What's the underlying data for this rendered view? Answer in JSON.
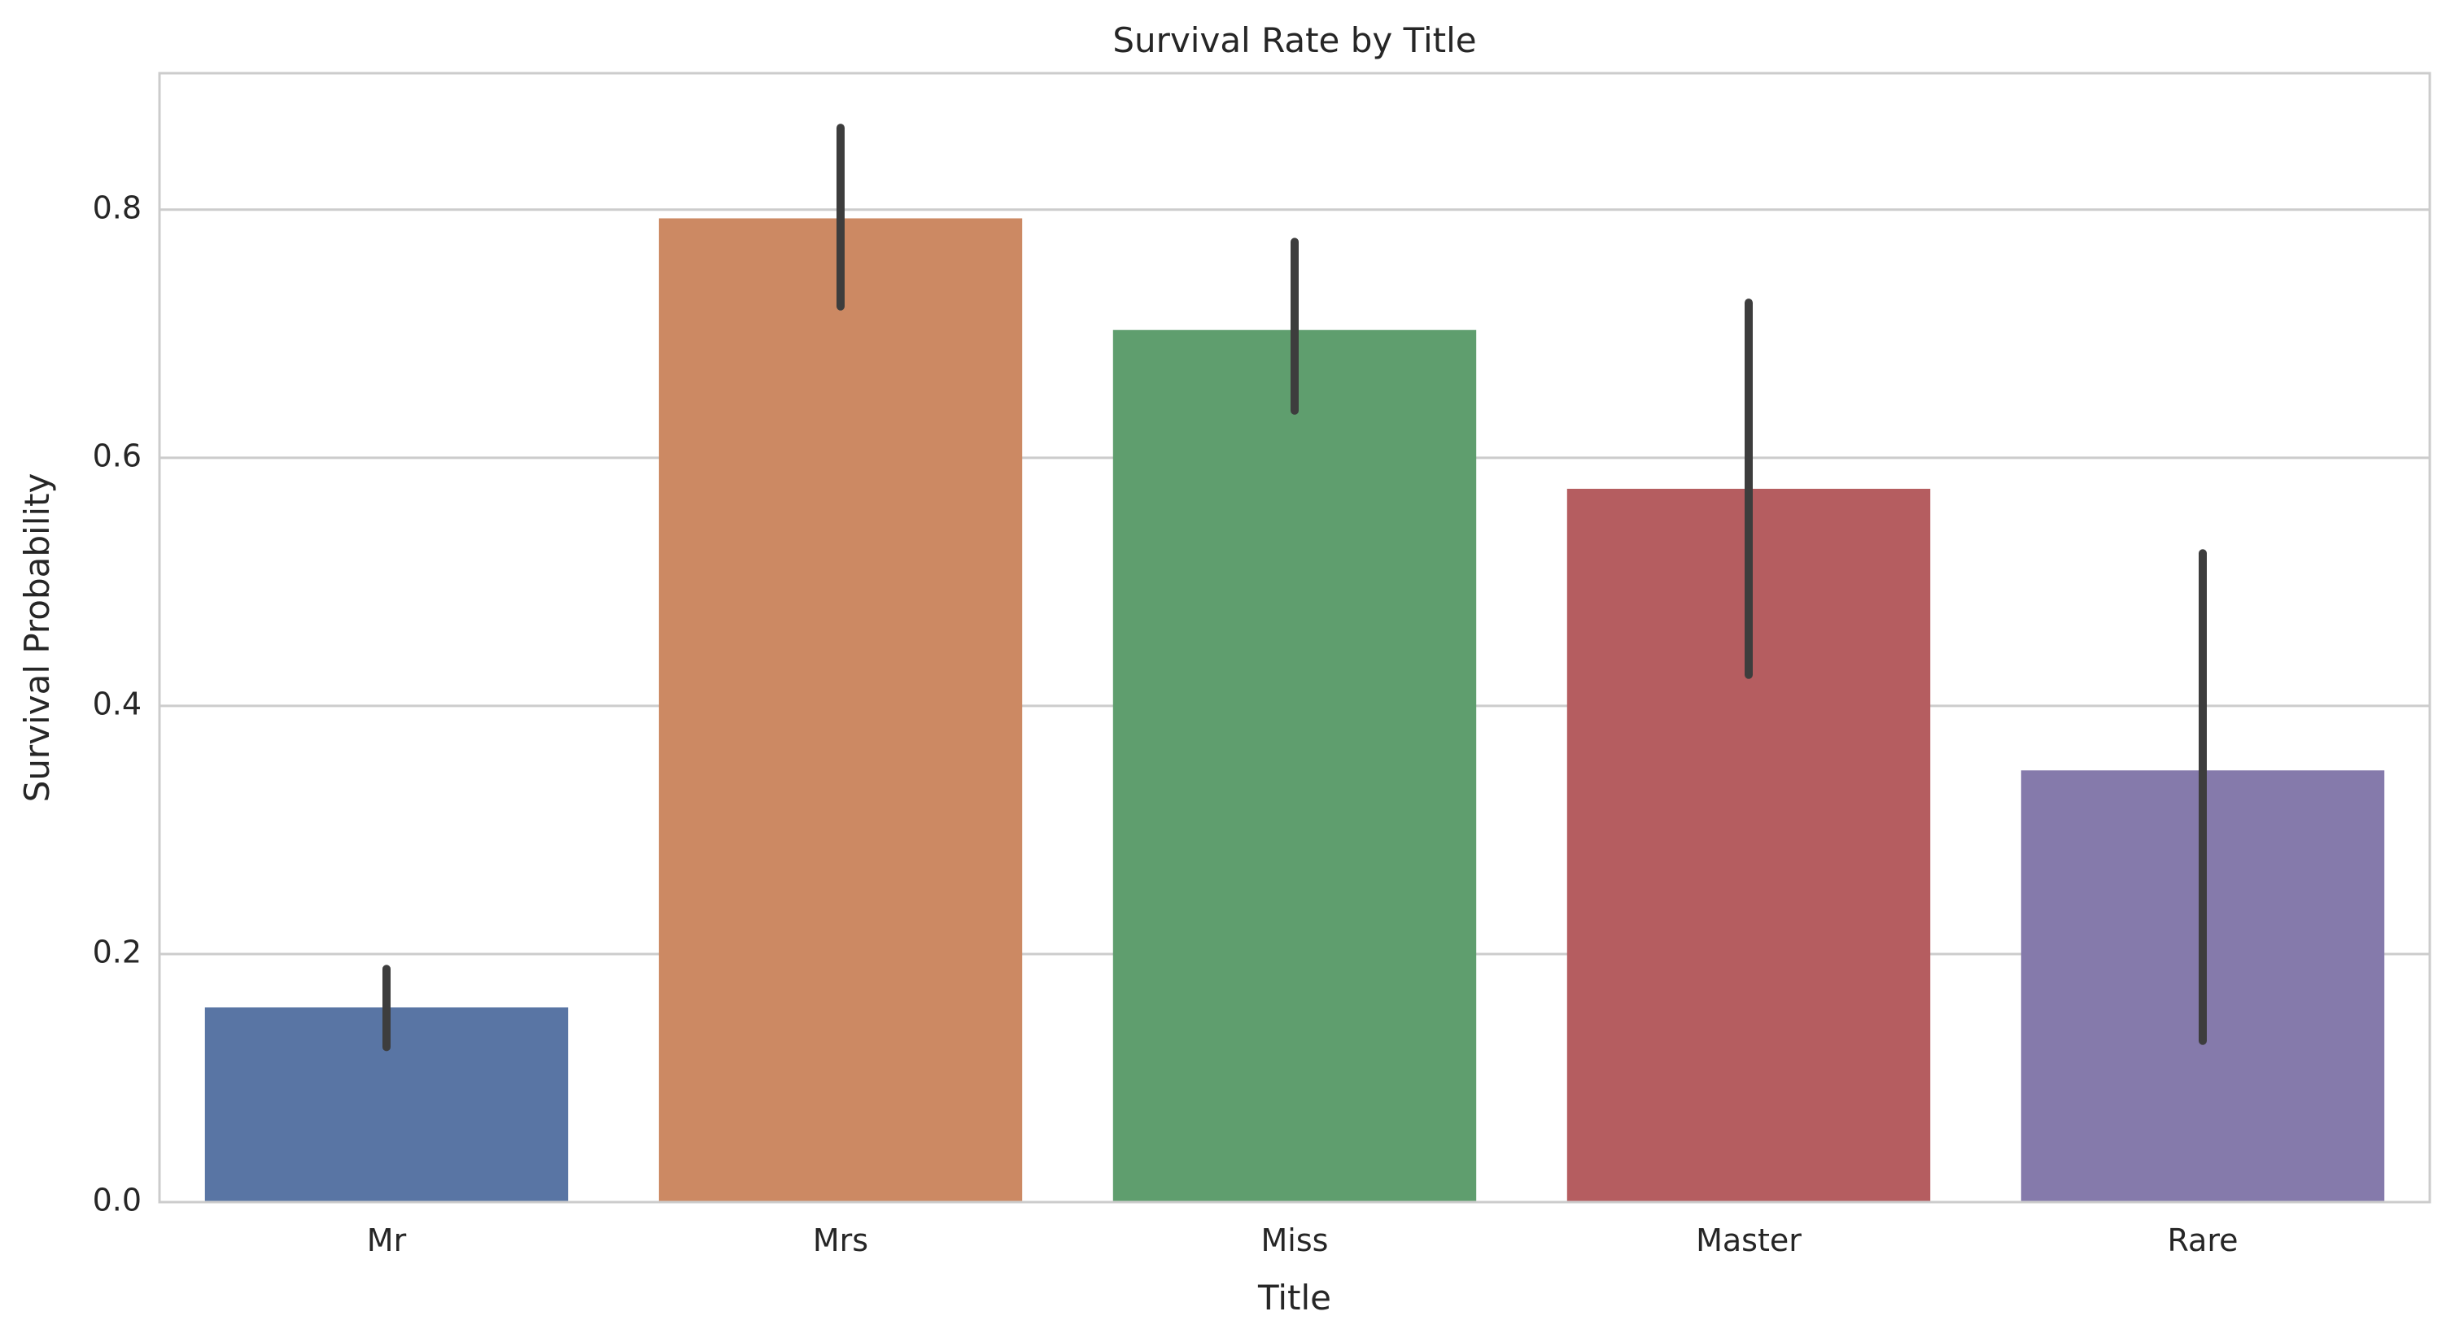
{
  "chart_data": {
    "type": "bar",
    "title": "Survival Rate by Title",
    "xlabel": "Title",
    "ylabel": "Survival Probability",
    "categories": [
      "Mr",
      "Mrs",
      "Miss",
      "Master",
      "Rare"
    ],
    "values": [
      0.157,
      0.793,
      0.703,
      0.575,
      0.348
    ],
    "error_bars": [
      [
        0.125,
        0.188
      ],
      [
        0.722,
        0.866
      ],
      [
        0.638,
        0.774
      ],
      [
        0.425,
        0.725
      ],
      [
        0.13,
        0.523
      ]
    ],
    "colors": [
      "#5975a4",
      "#cc8963",
      "#5f9e6e",
      "#b55d60",
      "#857aab"
    ],
    "error_color": "#3d3d3d",
    "ylim": [
      0,
      0.91
    ],
    "yticks": [
      "0.0",
      "0.2",
      "0.4",
      "0.6",
      "0.8"
    ],
    "grid": "horizontal",
    "legend": "none"
  }
}
